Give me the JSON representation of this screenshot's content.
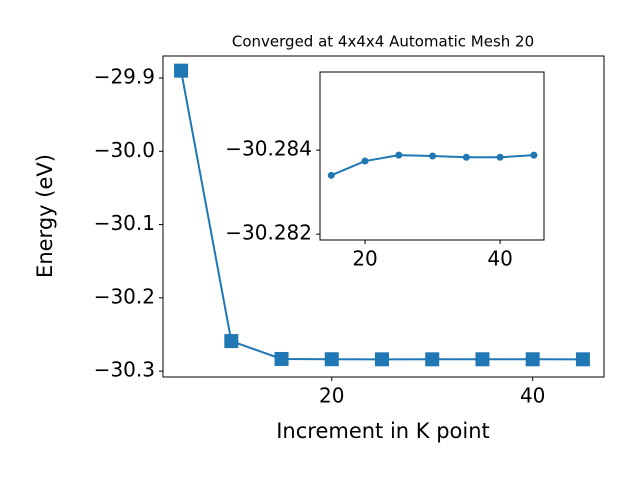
{
  "chart_data": [
    {
      "type": "line",
      "title": "Converged at 4x4x4 Automatic Mesh 20",
      "x_label": "Increment in K point",
      "y_label": "Energy (eV)",
      "x": [
        5,
        10,
        15,
        20,
        25,
        30,
        35,
        40,
        45
      ],
      "series": [
        {
          "name": "Energy",
          "color": "#1f77b4",
          "marker": "square",
          "values": [
            -29.89,
            -30.259,
            -30.2834,
            -30.28374,
            -30.28388,
            -30.28386,
            -30.28383,
            -30.28383,
            -30.28388
          ]
        }
      ],
      "xlim": [
        3.2,
        47.1
      ],
      "ylim": [
        -30.308,
        -29.87
      ],
      "xticks": [
        20,
        40
      ],
      "yticks": [
        {
          "value": -29.9,
          "label": "−29.9"
        },
        {
          "value": -30.0,
          "label": "−30.0"
        },
        {
          "value": -30.1,
          "label": "−30.1"
        },
        {
          "value": -30.2,
          "label": "−30.2"
        },
        {
          "value": -30.3,
          "label": "−30.3"
        }
      ]
    },
    {
      "type": "line",
      "x": [
        15,
        20,
        25,
        30,
        35,
        40,
        45
      ],
      "series": [
        {
          "name": "Energy",
          "color": "#1f77b4",
          "marker": "circle",
          "values": [
            -30.2834,
            -30.28374,
            -30.28388,
            -30.28386,
            -30.28383,
            -30.28383,
            -30.28388
          ]
        }
      ],
      "xlim": [
        13.33,
        46.5
      ],
      "ylim": [
        -30.28186,
        -30.28586
      ],
      "xticks": [
        20,
        40
      ],
      "yticks": [
        {
          "value": -30.284,
          "label": "−30.284"
        },
        {
          "value": -30.282,
          "label": "−30.282"
        }
      ]
    }
  ]
}
